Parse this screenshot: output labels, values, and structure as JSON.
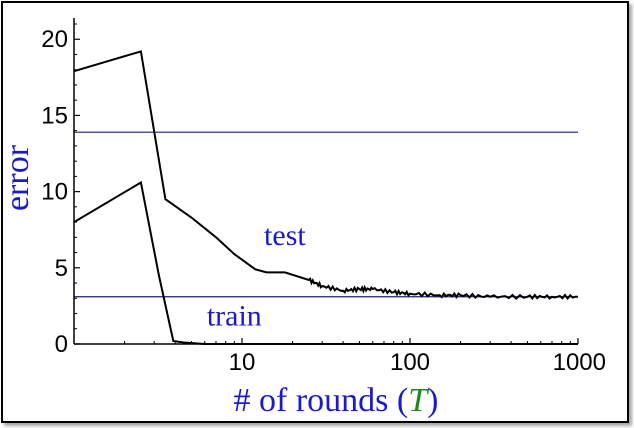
{
  "chart_data": {
    "type": "line",
    "title": "",
    "xlabel_parts": [
      "# of rounds (",
      "T",
      ")"
    ],
    "ylabel": "error",
    "x_scale": "log",
    "xlim": [
      1,
      1000
    ],
    "ylim": [
      0,
      21
    ],
    "x_ticks": [
      {
        "v": 10,
        "label": "10"
      },
      {
        "v": 100,
        "label": "100"
      },
      {
        "v": 1000,
        "label": "1000"
      }
    ],
    "y_ticks": [
      {
        "v": 0,
        "label": "0"
      },
      {
        "v": 5,
        "label": "5"
      },
      {
        "v": 10,
        "label": "10"
      },
      {
        "v": 15,
        "label": "15"
      },
      {
        "v": 20,
        "label": "20"
      }
    ],
    "reference_lines": [
      13.9,
      3.1
    ],
    "series": [
      {
        "name": "test",
        "x": [
          1,
          2.5,
          3.5,
          5,
          7,
          9,
          12,
          14,
          18,
          25,
          30,
          40,
          50,
          60,
          80,
          100,
          150,
          200,
          300,
          500,
          700,
          1000
        ],
        "y": [
          17.9,
          19.2,
          9.5,
          8.3,
          7.0,
          5.9,
          4.9,
          4.7,
          4.7,
          4.2,
          3.8,
          3.5,
          3.6,
          3.6,
          3.4,
          3.3,
          3.2,
          3.2,
          3.1,
          3.1,
          3.1,
          3.1
        ]
      },
      {
        "name": "train",
        "x": [
          1,
          2.5,
          3.2,
          3.9,
          4.5,
          6,
          10,
          100,
          1000
        ],
        "y": [
          8.0,
          10.6,
          4.5,
          0.2,
          0.1,
          0.0,
          0.0,
          0.0,
          0.0
        ]
      }
    ],
    "annotations": [
      {
        "text": "test",
        "x": 18,
        "y": 6.5
      },
      {
        "text": "train",
        "x": 9,
        "y": 1.2
      }
    ],
    "colors": {
      "lines": "#000000",
      "reference": "#1f1f6e",
      "labels": "#1a1acc",
      "T": "#1a8a1a"
    }
  }
}
